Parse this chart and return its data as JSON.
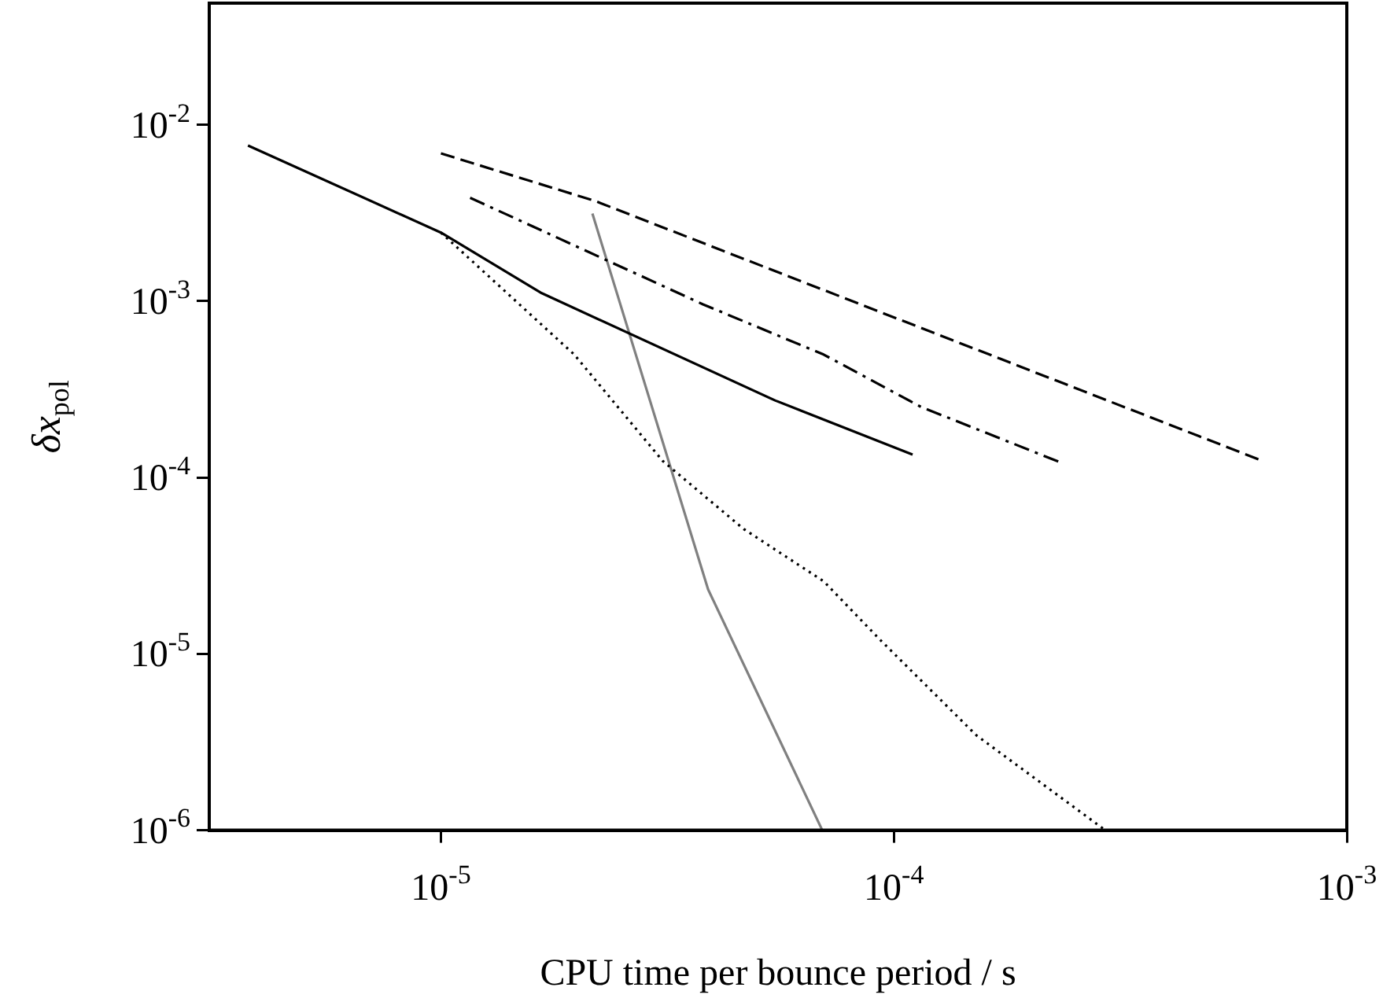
{
  "chart_data": {
    "type": "line",
    "xlabel": "CPU time per bounce period / s",
    "ylabel": "δx$_{pol}$",
    "log": "xy",
    "grid": false,
    "legend": false,
    "marker": "none",
    "xlim": [
      3.08e-06,
      0.001
    ],
    "ylim": [
      1e-06,
      0.049
    ],
    "xticks": [
      {
        "value": 1e-05,
        "label": "10$^{-5}$"
      },
      {
        "value": 0.0001,
        "label": "10$^{-4}$"
      },
      {
        "value": 0.001,
        "label": "10$^{-3}$"
      }
    ],
    "yticks": [
      {
        "value": 1e-06,
        "label": "10$^{-6}$"
      },
      {
        "value": 1e-05,
        "label": "10$^{-5}$"
      },
      {
        "value": 0.0001,
        "label": "10$^{-4}$"
      },
      {
        "value": 0.001,
        "label": "10$^{-3}$"
      },
      {
        "value": 0.01,
        "label": "10$^{-2}$"
      }
    ],
    "series": [
      {
        "color": "#000000",
        "line_style": "solid",
        "x": [
          3.75e-06,
          1e-05,
          1.67e-05,
          5.48e-05,
          0.00011
        ],
        "values": [
          0.00764,
          0.00245,
          0.00111,
          0.000273,
          0.000135
        ]
      },
      {
        "color": "#000000",
        "line_style": "dashed",
        "x": [
          1e-05,
          2.19e-05,
          0.000653
        ],
        "values": [
          0.00689,
          0.0037,
          0.000124
        ]
      },
      {
        "color": "#000000",
        "line_style": "dashdot",
        "x": [
          1.16e-05,
          3.79e-05,
          7e-05,
          0.000115,
          0.000233
        ],
        "values": [
          0.00386,
          0.00096,
          0.000498,
          0.000251,
          0.000122
        ]
      },
      {
        "color": "#000000",
        "line_style": "dotted",
        "x": [
          1e-05,
          1.97e-05,
          3.09e-05,
          4.66e-05,
          7e-05,
          9.33e-05,
          0.000152,
          0.000293
        ],
        "values": [
          0.00245,
          0.000498,
          0.000124,
          5.11e-05,
          2.58e-05,
          1.2e-05,
          3.46e-06,
          1e-06
        ]
      },
      {
        "color": "#808080",
        "line_style": "solid",
        "x": [
          2.16e-05,
          3.89e-05,
          6.95e-05
        ],
        "values": [
          0.00314,
          2.32e-05,
          1e-06
        ]
      }
    ]
  }
}
